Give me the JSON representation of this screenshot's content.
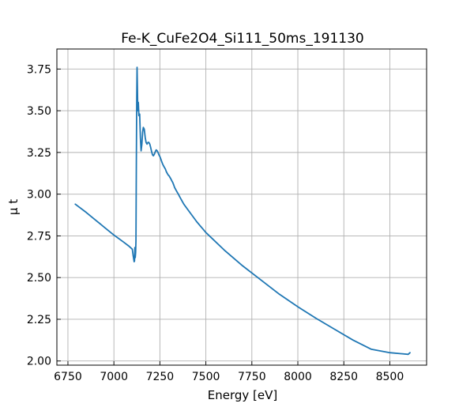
{
  "chart_data": {
    "type": "line",
    "title": "Fe-K_CuFe2O4_Si111_50ms_191130",
    "xlabel": "Energy [eV]",
    "ylabel": "μ t",
    "xlim": [
      6690,
      8700
    ],
    "ylim": [
      1.975,
      3.87
    ],
    "xticks": [
      6750,
      7000,
      7250,
      7500,
      7750,
      8000,
      8250,
      8500
    ],
    "yticks": [
      2.0,
      2.25,
      2.5,
      2.75,
      3.0,
      3.25,
      3.5,
      3.75
    ],
    "ytick_labels": [
      "2.00",
      "2.25",
      "2.50",
      "2.75",
      "3.00",
      "3.25",
      "3.50",
      "3.75"
    ],
    "grid": true,
    "series": [
      {
        "color": "#1f77b4",
        "x": [
          6790,
          6850,
          6900,
          6950,
          7000,
          7050,
          7080,
          7100,
          7105,
          7110,
          7112,
          7114,
          7116,
          7118,
          7120,
          7122,
          7124,
          7126,
          7128,
          7130,
          7133,
          7136,
          7140,
          7144,
          7148,
          7152,
          7156,
          7160,
          7165,
          7170,
          7175,
          7180,
          7185,
          7190,
          7195,
          7200,
          7205,
          7210,
          7215,
          7220,
          7225,
          7230,
          7235,
          7240,
          7245,
          7250,
          7255,
          7260,
          7265,
          7270,
          7275,
          7280,
          7285,
          7290,
          7295,
          7300,
          7305,
          7310,
          7315,
          7320,
          7325,
          7330,
          7340,
          7350,
          7360,
          7370,
          7380,
          7400,
          7450,
          7500,
          7600,
          7700,
          7800,
          7900,
          8000,
          8100,
          8200,
          8300,
          8400,
          8500,
          8600,
          8610
        ],
        "y": [
          2.94,
          2.89,
          2.845,
          2.8,
          2.755,
          2.715,
          2.69,
          2.67,
          2.63,
          2.595,
          2.6,
          2.68,
          2.62,
          2.65,
          2.72,
          3.2,
          3.58,
          3.76,
          3.62,
          3.5,
          3.55,
          3.47,
          3.48,
          3.34,
          3.26,
          3.3,
          3.37,
          3.4,
          3.39,
          3.34,
          3.31,
          3.3,
          3.31,
          3.31,
          3.3,
          3.28,
          3.255,
          3.235,
          3.23,
          3.24,
          3.255,
          3.265,
          3.26,
          3.25,
          3.235,
          3.225,
          3.21,
          3.195,
          3.18,
          3.17,
          3.16,
          3.15,
          3.135,
          3.125,
          3.115,
          3.11,
          3.1,
          3.09,
          3.08,
          3.07,
          3.055,
          3.04,
          3.02,
          3.0,
          2.98,
          2.96,
          2.94,
          2.91,
          2.835,
          2.77,
          2.665,
          2.57,
          2.485,
          2.4,
          2.325,
          2.255,
          2.19,
          2.125,
          2.07,
          2.05,
          2.04,
          2.05
        ]
      }
    ]
  }
}
